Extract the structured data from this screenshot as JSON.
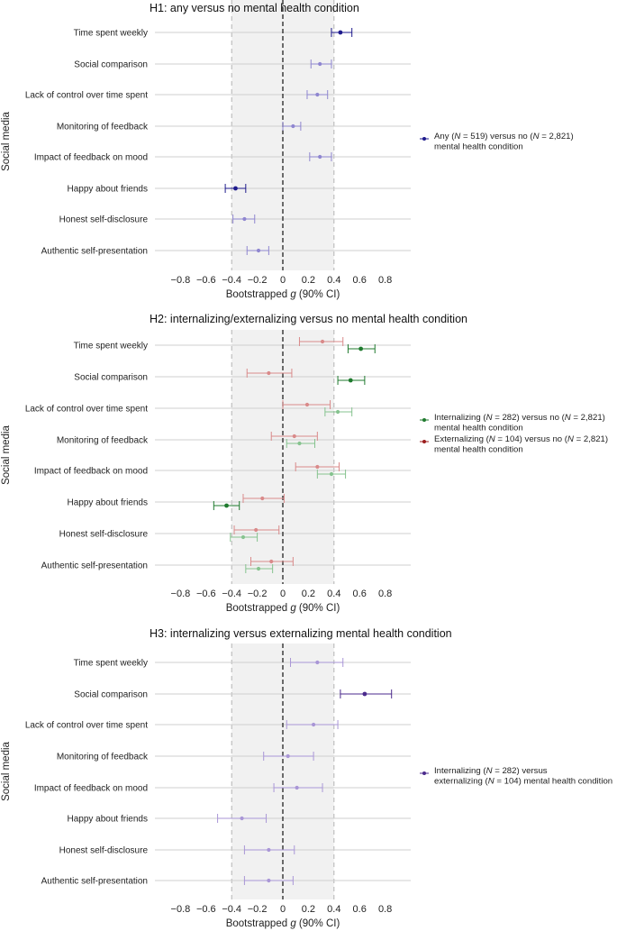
{
  "chart_data": [
    {
      "type": "forest",
      "title": "H1: any versus no mental health condition",
      "xlabel": "Bootstrapped g (90% CI)",
      "ylabel": "Social media",
      "xlim": [
        -1.0,
        1.0
      ],
      "xticks": [
        "−0.8",
        "−0.6",
        "−0.4",
        "−0.2",
        "0",
        "0.2",
        "0.4",
        "0.6",
        "0.8"
      ],
      "tick_values": [
        -0.8,
        -0.6,
        -0.4,
        -0.2,
        0,
        0.2,
        0.4,
        0.6,
        0.8
      ],
      "shaded_region": [
        -0.4,
        0.4
      ],
      "grid": true,
      "legend_position": "right",
      "categories": [
        "Time spent weekly",
        "Social comparison",
        "Lack of control over time spent",
        "Monitoring of feedback",
        "Impact of feedback on mood",
        "Happy about friends",
        "Honest self-disclosure",
        "Authentic self-presentation"
      ],
      "series": [
        {
          "name": "Any (N = 519) versus no (N = 2,821) mental health condition",
          "color": "#1e1a8c",
          "light_color": "#8f86d0",
          "points": [
            {
              "g": 0.45,
              "lo": 0.38,
              "hi": 0.54,
              "significant": true
            },
            {
              "g": 0.29,
              "lo": 0.22,
              "hi": 0.38,
              "significant": false
            },
            {
              "g": 0.27,
              "lo": 0.19,
              "hi": 0.35,
              "significant": false
            },
            {
              "g": 0.08,
              "lo": 0.0,
              "hi": 0.14,
              "significant": false
            },
            {
              "g": 0.29,
              "lo": 0.21,
              "hi": 0.38,
              "significant": false
            },
            {
              "g": -0.37,
              "lo": -0.45,
              "hi": -0.29,
              "significant": true
            },
            {
              "g": -0.3,
              "lo": -0.39,
              "hi": -0.22,
              "significant": false
            },
            {
              "g": -0.19,
              "lo": -0.28,
              "hi": -0.11,
              "significant": false
            }
          ]
        }
      ]
    },
    {
      "type": "forest",
      "title": "H2: internalizing/externalizing versus no mental health condition",
      "xlabel": "Bootstrapped g (90% CI)",
      "ylabel": "Social media",
      "xlim": [
        -1.0,
        1.0
      ],
      "xticks": [
        "−0.8",
        "−0.6",
        "−0.4",
        "−0.2",
        "0",
        "0.2",
        "0.4",
        "0.6",
        "0.8"
      ],
      "tick_values": [
        -0.8,
        -0.6,
        -0.4,
        -0.2,
        0,
        0.2,
        0.4,
        0.6,
        0.8
      ],
      "shaded_region": [
        -0.4,
        0.4
      ],
      "grid": true,
      "legend_position": "right",
      "categories": [
        "Time spent weekly",
        "Social comparison",
        "Lack of control over time spent",
        "Monitoring of feedback",
        "Impact of feedback on mood",
        "Happy about friends",
        "Honest self-disclosure",
        "Authentic self-presentation"
      ],
      "series": [
        {
          "name": "Internalizing (N = 282) versus no (N = 2,821) mental health condition",
          "color": "#1f7a2e",
          "light_color": "#86c38f",
          "points": [
            {
              "g": 0.61,
              "lo": 0.51,
              "hi": 0.72,
              "significant": true
            },
            {
              "g": 0.53,
              "lo": 0.43,
              "hi": 0.64,
              "significant": true
            },
            {
              "g": 0.43,
              "lo": 0.33,
              "hi": 0.54,
              "significant": false
            },
            {
              "g": 0.13,
              "lo": 0.03,
              "hi": 0.25,
              "significant": false
            },
            {
              "g": 0.38,
              "lo": 0.27,
              "hi": 0.49,
              "significant": false
            },
            {
              "g": -0.44,
              "lo": -0.54,
              "hi": -0.34,
              "significant": true
            },
            {
              "g": -0.31,
              "lo": -0.41,
              "hi": -0.2,
              "significant": false
            },
            {
              "g": -0.19,
              "lo": -0.29,
              "hi": -0.08,
              "significant": false
            }
          ]
        },
        {
          "name": "Externalizing (N = 104) versus no (N = 2,821) mental health condition",
          "color": "#9b1c1c",
          "light_color": "#d98a8a",
          "points": [
            {
              "g": 0.31,
              "lo": 0.13,
              "hi": 0.47,
              "significant": false
            },
            {
              "g": -0.11,
              "lo": -0.28,
              "hi": 0.07,
              "significant": false
            },
            {
              "g": 0.19,
              "lo": 0.0,
              "hi": 0.37,
              "significant": false
            },
            {
              "g": 0.09,
              "lo": -0.09,
              "hi": 0.27,
              "significant": false
            },
            {
              "g": 0.27,
              "lo": 0.1,
              "hi": 0.44,
              "significant": false
            },
            {
              "g": -0.16,
              "lo": -0.31,
              "hi": 0.01,
              "significant": false
            },
            {
              "g": -0.21,
              "lo": -0.38,
              "hi": -0.03,
              "significant": false
            },
            {
              "g": -0.09,
              "lo": -0.25,
              "hi": 0.08,
              "significant": false
            }
          ]
        }
      ]
    },
    {
      "type": "forest",
      "title": "H3: internalizing versus externalizing mental health condition",
      "xlabel": "Bootstrapped g (90% CI)",
      "ylabel": "Social media",
      "xlim": [
        -1.0,
        1.0
      ],
      "xticks": [
        "−0.8",
        "−0.6",
        "−0.4",
        "−0.2",
        "0",
        "0.2",
        "0.4",
        "0.6",
        "0.8"
      ],
      "tick_values": [
        -0.8,
        -0.6,
        -0.4,
        -0.2,
        0,
        0.2,
        0.4,
        0.6,
        0.8
      ],
      "shaded_region": [
        -0.4,
        0.4
      ],
      "grid": true,
      "legend_position": "right",
      "categories": [
        "Time spent weekly",
        "Social comparison",
        "Lack of control over time spent",
        "Monitoring of feedback",
        "Impact of feedback on mood",
        "Happy about friends",
        "Honest self-disclosure",
        "Authentic self-presentation"
      ],
      "series": [
        {
          "name": "Internalizing (N = 282) versus externalizing (N = 104) mental health condition",
          "color": "#4b2a8c",
          "light_color": "#a996d6",
          "points": [
            {
              "g": 0.27,
              "lo": 0.06,
              "hi": 0.47,
              "significant": false
            },
            {
              "g": 0.64,
              "lo": 0.45,
              "hi": 0.85,
              "significant": true
            },
            {
              "g": 0.24,
              "lo": 0.03,
              "hi": 0.43,
              "significant": false
            },
            {
              "g": 0.04,
              "lo": -0.15,
              "hi": 0.24,
              "significant": false
            },
            {
              "g": 0.11,
              "lo": -0.07,
              "hi": 0.31,
              "significant": false
            },
            {
              "g": -0.32,
              "lo": -0.51,
              "hi": -0.13,
              "significant": false
            },
            {
              "g": -0.11,
              "lo": -0.3,
              "hi": 0.09,
              "significant": false
            },
            {
              "g": -0.11,
              "lo": -0.3,
              "hi": 0.08,
              "significant": false
            }
          ]
        }
      ]
    }
  ]
}
